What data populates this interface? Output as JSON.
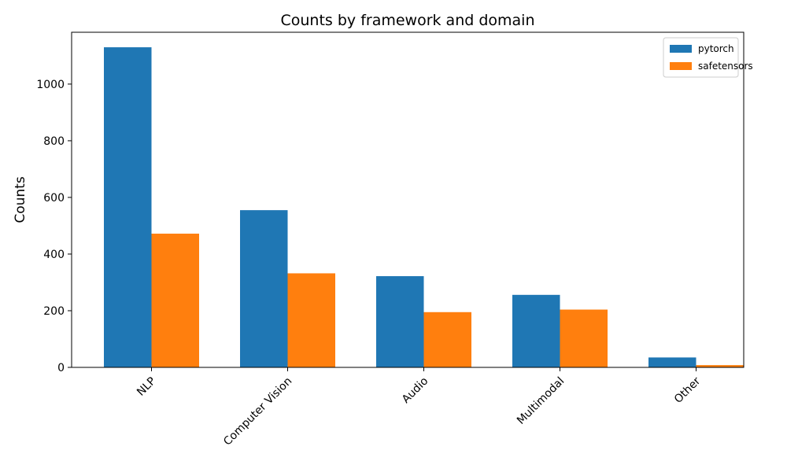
{
  "chart_data": {
    "type": "bar",
    "title": "Counts by framework and domain",
    "xlabel": "",
    "ylabel": "Counts",
    "categories": [
      "NLP",
      "Computer Vision",
      "Audio",
      "Multimodal",
      "Other"
    ],
    "series": [
      {
        "name": "pytorch",
        "color": "#1f77b4",
        "values": [
          1130,
          555,
          322,
          256,
          35
        ]
      },
      {
        "name": "safetensors",
        "color": "#ff7f0e",
        "values": [
          472,
          332,
          195,
          204,
          8
        ]
      }
    ],
    "ylim": [
      0,
      1183
    ],
    "yticks": [
      0,
      200,
      400,
      600,
      800,
      1000
    ],
    "legend_position": "top-right",
    "grid": false
  }
}
